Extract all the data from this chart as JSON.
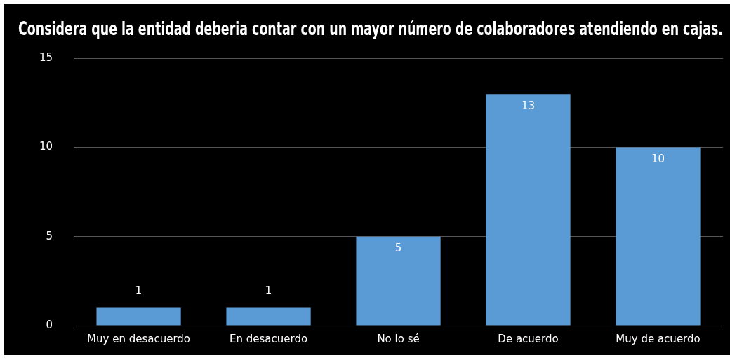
{
  "chart_data": {
    "type": "bar",
    "title": "Considera que la entidad deberia contar con un mayor número de colaboradores atendiendo en cajas.",
    "categories": [
      "Muy en desacuerdo",
      "En desacuerdo",
      "No lo sé",
      "De acuerdo",
      "Muy de acuerdo"
    ],
    "values": [
      1,
      1,
      5,
      13,
      10
    ],
    "color": "#5b9bd5",
    "ylim": [
      0,
      15
    ],
    "yticks": [
      0,
      5,
      10,
      15
    ],
    "grid": "y",
    "data_labels": true
  }
}
